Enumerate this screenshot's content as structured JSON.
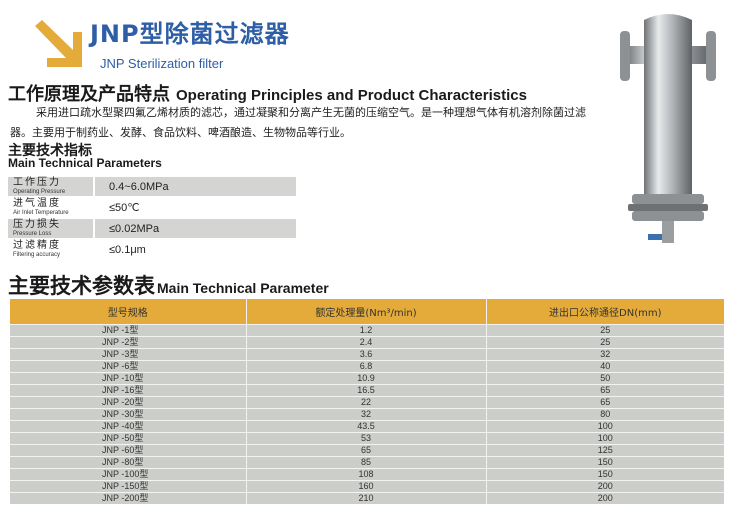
{
  "header": {
    "title_cn": "JNP型除菌过滤器",
    "title_en": "JNP Sterilization filter",
    "accent_color": "#e5ab3a",
    "title_color": "#2e5ea6",
    "arrow_icon": "arrow-down-right-icon"
  },
  "section1": {
    "title_cn": "工作原理及产品特点",
    "title_en": "Operating Principles and Product Characteristics",
    "description": "采用进口疏水型聚四氟乙烯材质的滤芯，通过凝聚和分离产生无菌的压缩空气。是一种理想气体有机溶剂除菌过滤器。主要用于制药业、发酵、食品饮料、啤酒酿造、生物物品等行业。"
  },
  "specs": {
    "title_cn": "主要技术指标",
    "title_en": "Main Technical Parameters",
    "rows": [
      {
        "label_cn": "工作压力",
        "label_en": "Operating Pressure",
        "value": "0.4~6.0MPa"
      },
      {
        "label_cn": "进气温度",
        "label_en": "Air Inlet Temperature",
        "value": "≤50℃"
      },
      {
        "label_cn": "压力损失",
        "label_en": "Pressure Loss",
        "value": "≤0.02MPa"
      },
      {
        "label_cn": "过滤精度",
        "label_en": "Filtering accuracy",
        "value": "≤0.1μm"
      }
    ]
  },
  "product_image": {
    "alt": "stainless steel sterilization filter housing"
  },
  "param_table": {
    "title_cn": "主要技术参数表",
    "title_en": "Main Technical Parameter",
    "header_color": "#e5ab3a",
    "columns": [
      "型号规格",
      "额定处理量(Nm³/min)",
      "进出口公称通径DN(mm)"
    ],
    "rows": [
      [
        "JNP -1型",
        "1.2",
        "25"
      ],
      [
        "JNP -2型",
        "2.4",
        "25"
      ],
      [
        "JNP -3型",
        "3.6",
        "32"
      ],
      [
        "JNP -6型",
        "6.8",
        "40"
      ],
      [
        "JNP -10型",
        "10.9",
        "50"
      ],
      [
        "JNP -16型",
        "16.5",
        "65"
      ],
      [
        "JNP -20型",
        "22",
        "65"
      ],
      [
        "JNP -30型",
        "32",
        "80"
      ],
      [
        "JNP -40型",
        "43.5",
        "100"
      ],
      [
        "JNP -50型",
        "53",
        "100"
      ],
      [
        "JNP -60型",
        "65",
        "125"
      ],
      [
        "JNP -80型",
        "85",
        "150"
      ],
      [
        "JNP -100型",
        "108",
        "150"
      ],
      [
        "JNP -150型",
        "160",
        "200"
      ],
      [
        "JNP -200型",
        "210",
        "200"
      ]
    ]
  }
}
